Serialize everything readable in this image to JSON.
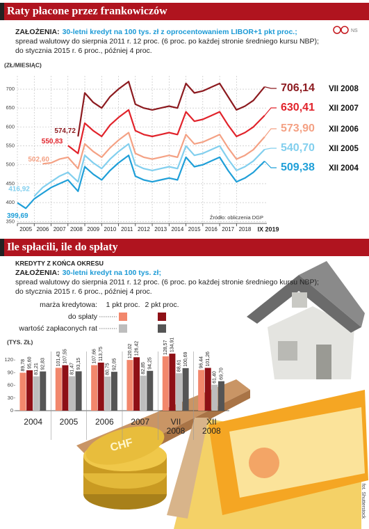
{
  "chart_data": [
    {
      "type": "line",
      "title": "Raty płacone przez frankowiczów",
      "logo": "NS",
      "assumptions_label": "ZAŁOŻENIA:",
      "assumptions_highlight": "30-letni kredyt na 100 tys. zł z oprocentowaniem LIBOR+1 pkt proc.;",
      "assumptions": [
        "spread walutowy do sierpnia 2011 r. 12 proc. (6 proc. po każdej stronie średniego kursu NBP);",
        "do stycznia 2015 r. 6 proc., później 4 proc."
      ],
      "y_label": "(ZŁ/MIESIĄC)",
      "source": "Źródło: obliczenia DGP",
      "x": [
        2005,
        2005.5,
        2006,
        2006.5,
        2007,
        2007.5,
        2008,
        2008.6,
        2009,
        2009.5,
        2010,
        2010.5,
        2011,
        2011.6,
        2012,
        2012.5,
        2013,
        2013.5,
        2014,
        2014.5,
        2015,
        2015.5,
        2016,
        2016.5,
        2017,
        2017.5,
        2018,
        2018.5,
        2019,
        2019.67
      ],
      "xlim": [
        2005,
        2019.8
      ],
      "xticks": [
        2005,
        2006,
        2007,
        2008,
        2009,
        2010,
        2011,
        2012,
        2013,
        2014,
        2015,
        2016,
        2017,
        2018
      ],
      "x_end_label": "IX 2019",
      "ylim": [
        345,
        735
      ],
      "yticks": [
        350,
        400,
        450,
        500,
        550,
        600,
        650,
        700
      ],
      "grid": true,
      "series": [
        {
          "name": "VII 2008",
          "color": "#8c1a1f",
          "values": [
            null,
            null,
            null,
            null,
            null,
            null,
            null,
            574.72,
            690,
            665,
            650,
            680,
            700,
            720,
            660,
            650,
            645,
            650,
            655,
            650,
            715,
            690,
            695,
            705,
            715,
            680,
            645,
            655,
            670,
            706.14
          ],
          "value_labels": [
            null,
            null,
            null,
            null,
            null,
            null,
            null,
            "574,72",
            null,
            null,
            null,
            null,
            null,
            null,
            null,
            null,
            null,
            null,
            null,
            null,
            null,
            null,
            null,
            null,
            null,
            null,
            null,
            null,
            null,
            "706,14"
          ]
        },
        {
          "name": "XII 2007",
          "color": "#e1232b",
          "values": [
            null,
            null,
            null,
            null,
            null,
            null,
            550.83,
            530,
            610,
            590,
            575,
            605,
            625,
            645,
            590,
            580,
            575,
            580,
            585,
            580,
            640,
            615,
            620,
            630,
            640,
            605,
            575,
            585,
            600,
            630.41
          ],
          "value_labels": [
            null,
            null,
            null,
            null,
            null,
            null,
            "550,83",
            null,
            null,
            null,
            null,
            null,
            null,
            null,
            null,
            null,
            null,
            null,
            null,
            null,
            null,
            null,
            null,
            null,
            null,
            null,
            null,
            null,
            null,
            "630,41"
          ]
        },
        {
          "name": "XII 2006",
          "color": "#f4a184",
          "values": [
            null,
            null,
            null,
            502.6,
            505,
            515,
            520,
            490,
            555,
            535,
            520,
            545,
            565,
            585,
            530,
            520,
            515,
            520,
            525,
            520,
            580,
            555,
            560,
            570,
            580,
            545,
            515,
            525,
            540,
            573.9
          ],
          "value_labels": [
            null,
            null,
            null,
            "502,60",
            null,
            null,
            null,
            null,
            null,
            null,
            null,
            null,
            null,
            null,
            null,
            null,
            null,
            null,
            null,
            null,
            null,
            null,
            null,
            null,
            null,
            null,
            null,
            null,
            null,
            "573,90"
          ]
        },
        {
          "name": "XII 2005",
          "color": "#82cfee",
          "values": [
            null,
            null,
            416.92,
            440,
            455,
            470,
            480,
            455,
            525,
            505,
            490,
            515,
            535,
            555,
            500,
            490,
            485,
            490,
            495,
            490,
            550,
            525,
            530,
            540,
            550,
            515,
            485,
            495,
            510,
            540.7
          ],
          "value_labels": [
            null,
            null,
            "416,92",
            null,
            null,
            null,
            null,
            null,
            null,
            null,
            null,
            null,
            null,
            null,
            null,
            null,
            null,
            null,
            null,
            null,
            null,
            null,
            null,
            null,
            null,
            null,
            null,
            null,
            null,
            "540,70"
          ]
        },
        {
          "name": "XII 2004",
          "color": "#1f9fd8",
          "values": [
            399.69,
            385,
            410,
            425,
            440,
            450,
            460,
            430,
            495,
            475,
            460,
            485,
            505,
            525,
            470,
            460,
            455,
            460,
            465,
            460,
            520,
            495,
            500,
            510,
            520,
            485,
            455,
            465,
            480,
            509.38
          ],
          "value_labels": [
            "399,69",
            null,
            null,
            null,
            null,
            null,
            null,
            null,
            null,
            null,
            null,
            null,
            null,
            null,
            null,
            null,
            null,
            null,
            null,
            null,
            null,
            null,
            null,
            null,
            null,
            null,
            null,
            null,
            null,
            "509,38"
          ]
        }
      ]
    },
    {
      "type": "bar",
      "title": "Ile spłacili, ile do spłaty",
      "subtitle": "KREDYTY Z KOŃCA OKRESU",
      "assumptions_label": "ZAŁOŻENIA:",
      "assumptions_highlight": "30-letni kredyt na 100 tys. zł;",
      "assumptions": [
        "spread walutowy do sierpnia 2011 r. 12 proc. (6 proc. po każdej stronie średniego kursu NBP);",
        "do stycznia 2015 r. 6 proc., później 4 proc."
      ],
      "legend_title": "marża kredytowa:",
      "legend_columns": [
        "1 pkt proc.",
        "2 pkt proc."
      ],
      "legend_rows": [
        "do spłaty",
        "wartość zapłaconych rat"
      ],
      "y_label": "(TYS. ZŁ)",
      "categories": [
        "2004",
        "2005",
        "2006",
        "2007",
        "VII 2008",
        "XII 2008"
      ],
      "ylim": [
        0,
        140
      ],
      "yticks": [
        0,
        30,
        60,
        90,
        120
      ],
      "series": [
        {
          "color": "#f2876c",
          "values": [
            89.78,
            101.43,
            107.66,
            120.02,
            128.57,
            96.44
          ],
          "value_labels": [
            "89,78",
            "101,43",
            "107,66",
            "120,02",
            "128,57",
            "96,44"
          ]
        },
        {
          "color": "#8e1016",
          "values": [
            95.6,
            107.55,
            113.75,
            126.42,
            134.91,
            101.26
          ],
          "value_labels": [
            "95,60",
            "107,55",
            "113,75",
            "126,42",
            "134,91",
            "101,26"
          ]
        },
        {
          "color": "#bdbdbd",
          "values": [
            81.21,
            81.47,
            80.75,
            82.85,
            88.61,
            61.4
          ],
          "value_labels": [
            "81,21",
            "81,47",
            "80,75",
            "82,85",
            "88,61",
            "61,40"
          ]
        },
        {
          "color": "#555555",
          "values": [
            92.83,
            93.15,
            92.05,
            94.25,
            100.69,
            69.7
          ],
          "value_labels": [
            "92,83",
            "93,15",
            "92,05",
            "94,25",
            "100,69",
            "69,70"
          ]
        }
      ],
      "photo_credit": "fot. Shutterstock"
    }
  ]
}
